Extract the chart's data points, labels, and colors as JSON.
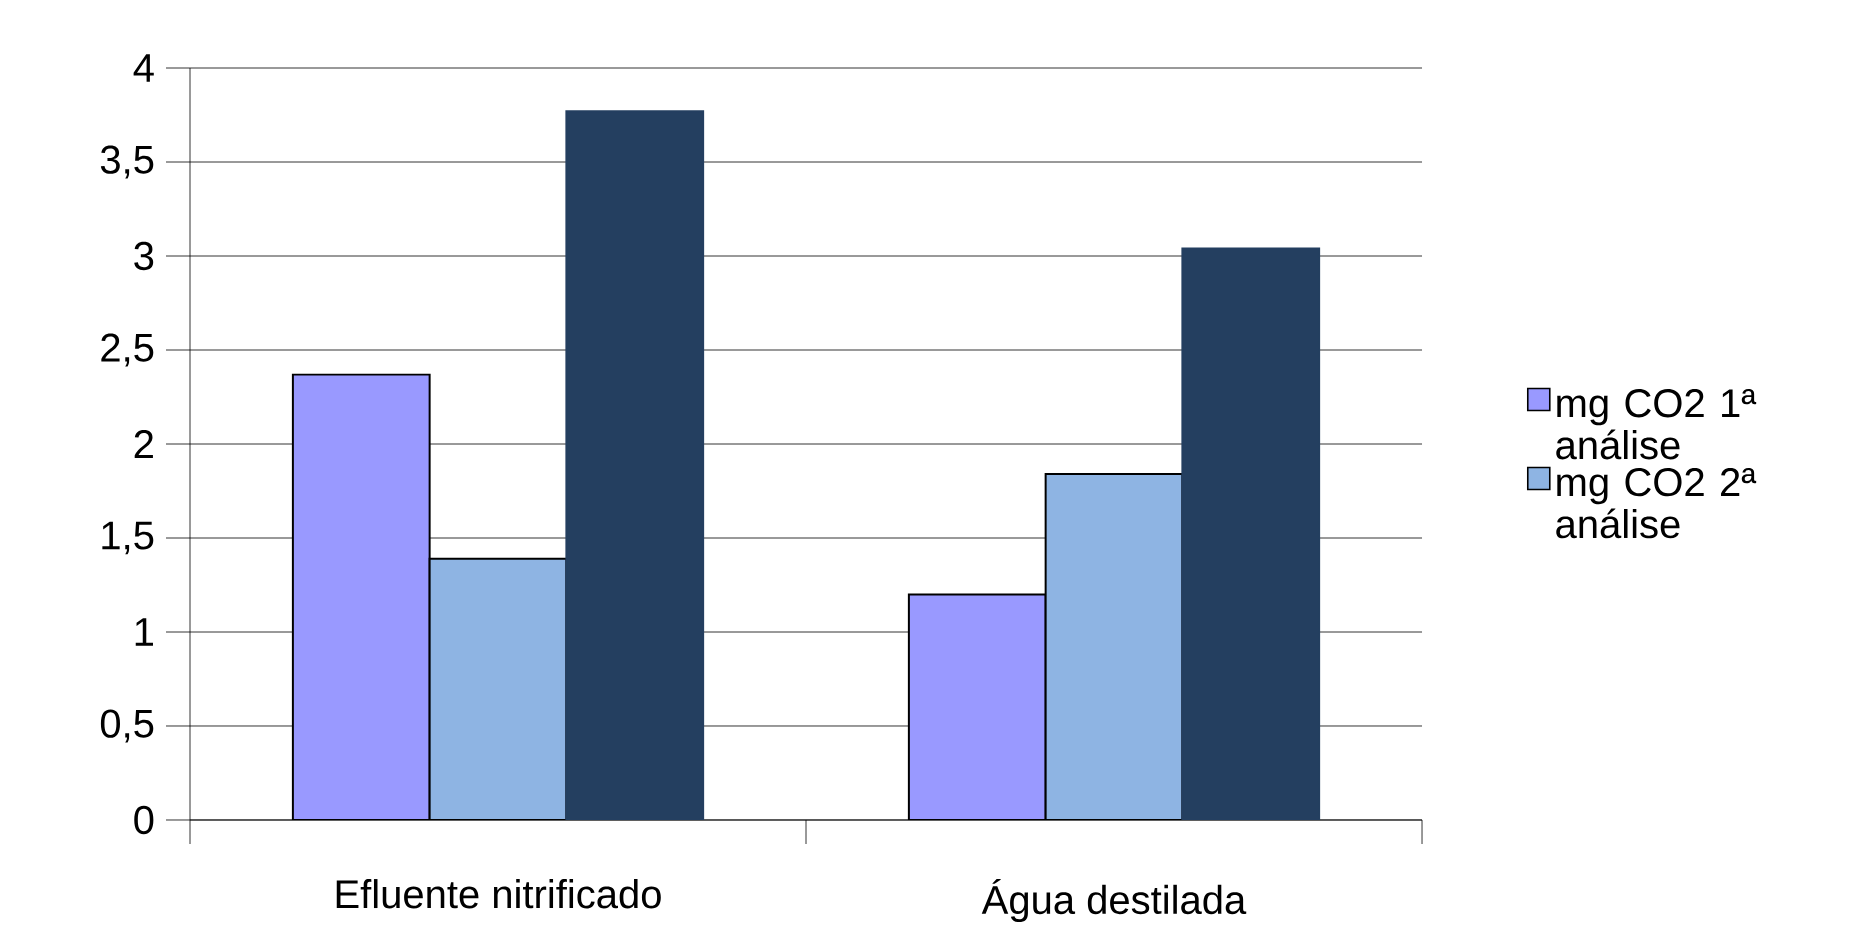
{
  "chart_data": {
    "type": "bar",
    "categories": [
      "Efluente nitrificado",
      "Água destilada"
    ],
    "series": [
      {
        "name": "mg CO2 1ª análise",
        "color": "#9999ff",
        "values": [
          2.37,
          1.2
        ]
      },
      {
        "name": "mg CO2 2ª análise",
        "color": "#8eb4e3",
        "values": [
          1.39,
          1.84
        ]
      },
      {
        "color": "#243f60",
        "values": [
          3.77,
          3.04
        ]
      }
    ],
    "ylim": [
      0,
      4
    ],
    "yticks": [
      {
        "value": 0,
        "label": "0"
      },
      {
        "value": 0.5,
        "label": "0,5"
      },
      {
        "value": 1,
        "label": "1"
      },
      {
        "value": 1.5,
        "label": "1,5"
      },
      {
        "value": 2,
        "label": "2"
      },
      {
        "value": 2.5,
        "label": "2,5"
      },
      {
        "value": 3,
        "label": "3"
      },
      {
        "value": 3.5,
        "label": "3,5"
      },
      {
        "value": 4,
        "label": "4"
      }
    ],
    "grid": "y",
    "legend": "right"
  }
}
